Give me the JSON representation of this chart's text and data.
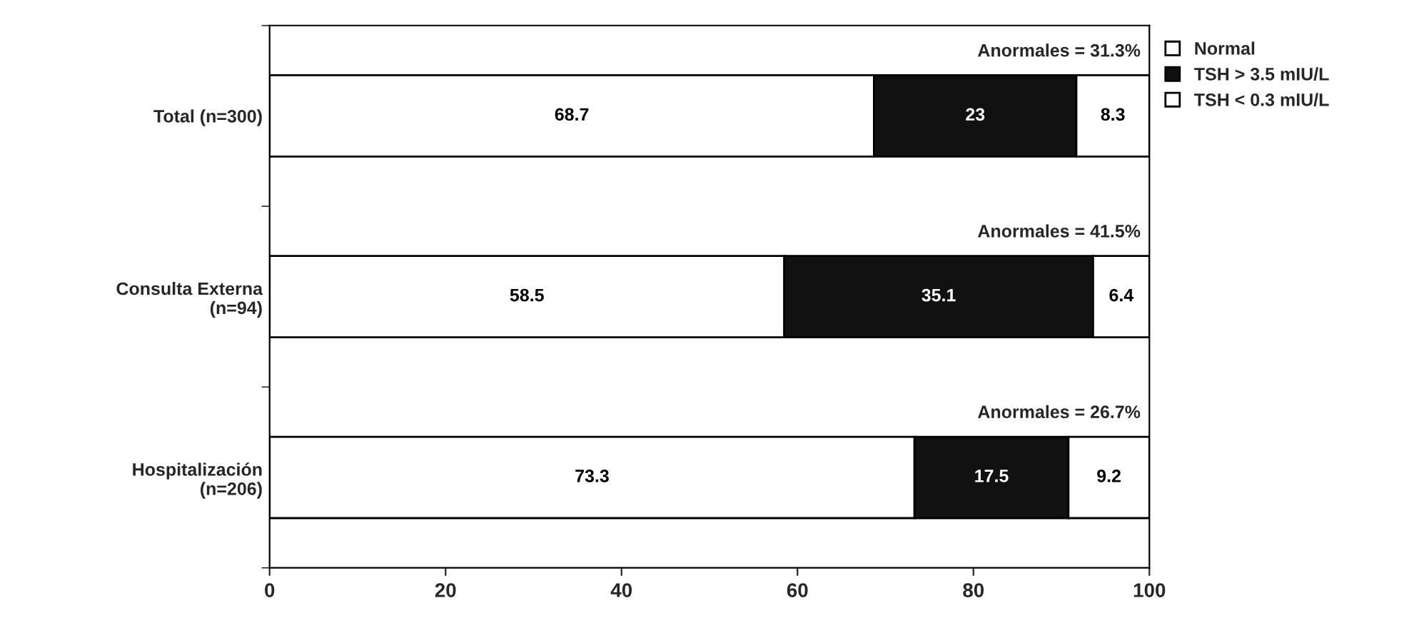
{
  "chart_data": {
    "type": "bar",
    "orientation": "horizontal",
    "stacked": true,
    "categories": [
      "Total (n=300)",
      "Consulta Externa\n(n=94)",
      "Hospitalización\n(n=206)"
    ],
    "series": [
      {
        "name": "Normal",
        "color": "#ffffff",
        "values": [
          68.7,
          58.5,
          73.3
        ]
      },
      {
        "name": "TSH > 3.5 mIU/L",
        "color": "#111111",
        "values": [
          23,
          35.1,
          17.5
        ]
      },
      {
        "name": "TSH < 0.3 mIU/L",
        "color": "#ffffff",
        "values": [
          8.3,
          6.4,
          9.2
        ]
      }
    ],
    "xlim": [
      0,
      100
    ],
    "xticks": [
      0,
      20,
      40,
      60,
      80,
      100
    ],
    "data_labels": true,
    "grid": false,
    "legend": "top right",
    "annotations": [
      "Anormales = 31.3%",
      "Anormales = 41.5%",
      "Anormales = 26.7%"
    ]
  }
}
